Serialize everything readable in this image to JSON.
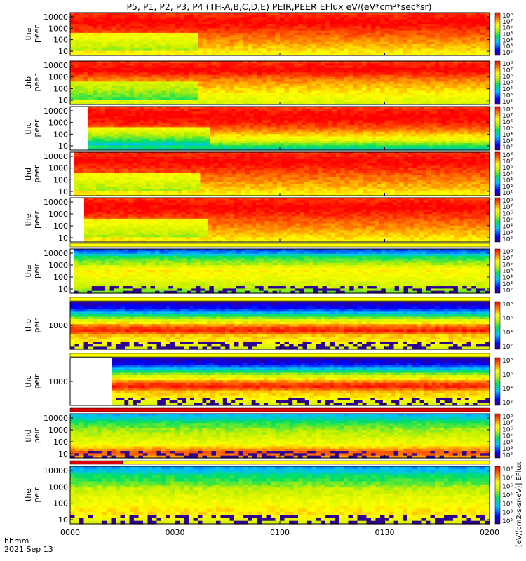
{
  "title": "P5, P1, P2, P3, P4 (TH-A,B,C,D,E) PEIR,PEER EFlux eV/(eV*cm²*sec*sr)",
  "time_axis": {
    "label_line1": "hhmm",
    "label_line2": "2021 Sep 13",
    "ticks": [
      "0000",
      "0030",
      "0100",
      "0130",
      "0200"
    ]
  },
  "colorbar_ticks": [
    "10⁸",
    "10⁷",
    "10⁶",
    "10⁵",
    "10⁴",
    "10³",
    "10²"
  ],
  "colorbar_ticks_short": [
    "10⁸",
    "10⁶",
    "10⁴",
    "10²"
  ],
  "colorbar_label": "[eV/(cm2-s-sr-eV)] EFlux",
  "colors": {
    "flag_red": "#dd0000",
    "flag_yellow": "#ffff00"
  },
  "chart_data": [
    {
      "type": "heatmap",
      "probe": "tha",
      "species": "peer",
      "ylabel": [
        "tha",
        "peer"
      ],
      "yticks": [
        "10000",
        "1000",
        "100",
        "10"
      ],
      "ylim": [
        5,
        25000
      ],
      "yscale": "log",
      "xlim": [
        "0000",
        "0200"
      ],
      "data_start": "0000",
      "colorbar": "long",
      "profile": "electron_a"
    },
    {
      "type": "heatmap",
      "probe": "thb",
      "species": "peer",
      "ylabel": [
        "thb",
        "peer"
      ],
      "yticks": [
        "10000",
        "1000",
        "100",
        "10"
      ],
      "ylim": [
        5,
        25000
      ],
      "yscale": "log",
      "xlim": [
        "0000",
        "0200"
      ],
      "data_start": "0000",
      "colorbar": "long",
      "profile": "electron_b"
    },
    {
      "type": "heatmap",
      "probe": "thc",
      "species": "peer",
      "ylabel": [
        "thc",
        "peer"
      ],
      "yticks": [
        "10000",
        "1000",
        "100",
        "10"
      ],
      "ylim": [
        5,
        25000
      ],
      "yscale": "log",
      "xlim": [
        "0000",
        "0200"
      ],
      "data_start": "0005",
      "colorbar": "long",
      "profile": "electron_c"
    },
    {
      "type": "heatmap",
      "probe": "thd",
      "species": "peer",
      "ylabel": [
        "thd",
        "peer"
      ],
      "yticks": [
        "10000",
        "1000",
        "100",
        "10"
      ],
      "ylim": [
        5,
        25000
      ],
      "yscale": "log",
      "xlim": [
        "0000",
        "0200"
      ],
      "data_start": "0001",
      "colorbar": "long",
      "profile": "electron_a"
    },
    {
      "type": "heatmap",
      "probe": "the",
      "species": "peer",
      "ylabel": [
        "the",
        "peer"
      ],
      "yticks": [
        "10000",
        "1000",
        "100",
        "10"
      ],
      "ylim": [
        5,
        25000
      ],
      "yscale": "log",
      "xlim": [
        "0000",
        "0200"
      ],
      "data_start": "0004",
      "colorbar": "long",
      "profile": "electron_a"
    },
    {
      "type": "heatmap",
      "probe": "tha",
      "species": "peir",
      "ylabel": [
        "tha",
        "peir"
      ],
      "yticks": [
        "10000",
        "1000",
        "100",
        "10"
      ],
      "ylim": [
        5,
        25000
      ],
      "yscale": "log",
      "xlim": [
        "0000",
        "0200"
      ],
      "data_start": "0001",
      "colorbar": "long",
      "profile": "ion_a"
    },
    {
      "type": "heatmap",
      "probe": "thb",
      "species": "peir",
      "ylabel": [
        "thb",
        "peir"
      ],
      "yticks": [
        "1000"
      ],
      "ylim": [
        5,
        25000
      ],
      "yscale": "log",
      "xlim": [
        "0000",
        "0200"
      ],
      "data_start": "0000",
      "colorbar": "short",
      "profile": "ion_b"
    },
    {
      "type": "heatmap",
      "probe": "thc",
      "species": "peir",
      "ylabel": [
        "thc",
        "peir"
      ],
      "yticks": [
        "1000"
      ],
      "ylim": [
        5,
        25000
      ],
      "yscale": "log",
      "xlim": [
        "0000",
        "0200"
      ],
      "data_start": "0012",
      "colorbar": "short",
      "profile": "ion_b"
    },
    {
      "type": "heatmap",
      "probe": "thd",
      "species": "peir",
      "ylabel": [
        "thd",
        "peir"
      ],
      "yticks": [
        "10000",
        "1000",
        "100",
        "10"
      ],
      "ylim": [
        5,
        25000
      ],
      "yscale": "log",
      "xlim": [
        "0000",
        "0200"
      ],
      "data_start": "0000",
      "colorbar": "long",
      "profile": "ion_d"
    },
    {
      "type": "heatmap",
      "probe": "the",
      "species": "peir",
      "ylabel": [
        "the",
        "peir"
      ],
      "yticks": [
        "10000",
        "1000",
        "100",
        "10"
      ],
      "ylim": [
        5,
        25000
      ],
      "yscale": "log",
      "xlim": [
        "0000",
        "0200"
      ],
      "data_start": "0000",
      "colorbar": "long",
      "profile": "ion_e"
    }
  ]
}
